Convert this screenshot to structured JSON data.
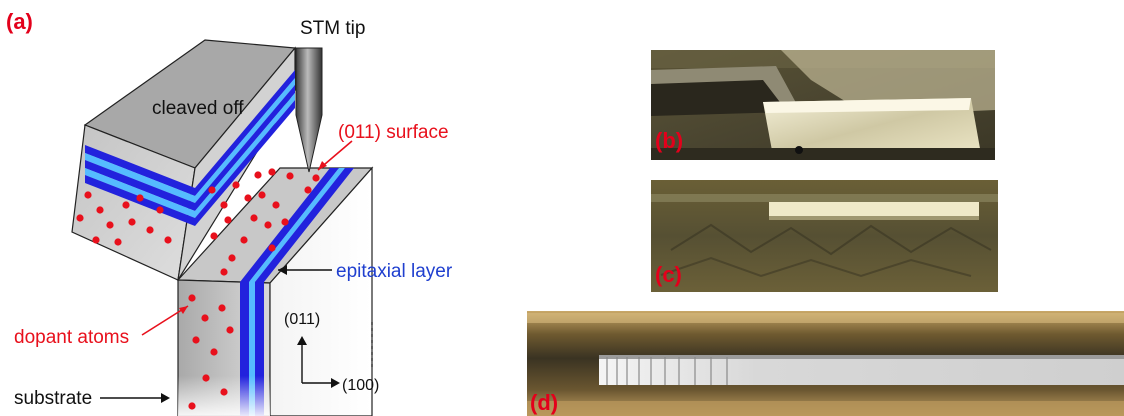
{
  "panels": {
    "a": {
      "label": "(a)"
    },
    "b": {
      "label": "(b)"
    },
    "c": {
      "label": "(c)"
    },
    "d": {
      "label": "(d)"
    }
  },
  "diagram": {
    "stm_tip": "STM tip",
    "cleaved_off": "cleaved off",
    "surface": "(011) surface",
    "epitaxial_layer": "epitaxial layer",
    "dopant_atoms": "dopant atoms",
    "substrate": "substrate",
    "axis_vertical": "(011)",
    "axis_horizontal": "(100)"
  },
  "colors": {
    "label_red": "#e3001b",
    "dopant_red": "#e8101c",
    "layer_dark_blue": "#2222dd",
    "layer_light_blue": "#55bbff",
    "annotation_blue": "#1f3fcf",
    "crystal_gray": "#bdbdbd"
  }
}
